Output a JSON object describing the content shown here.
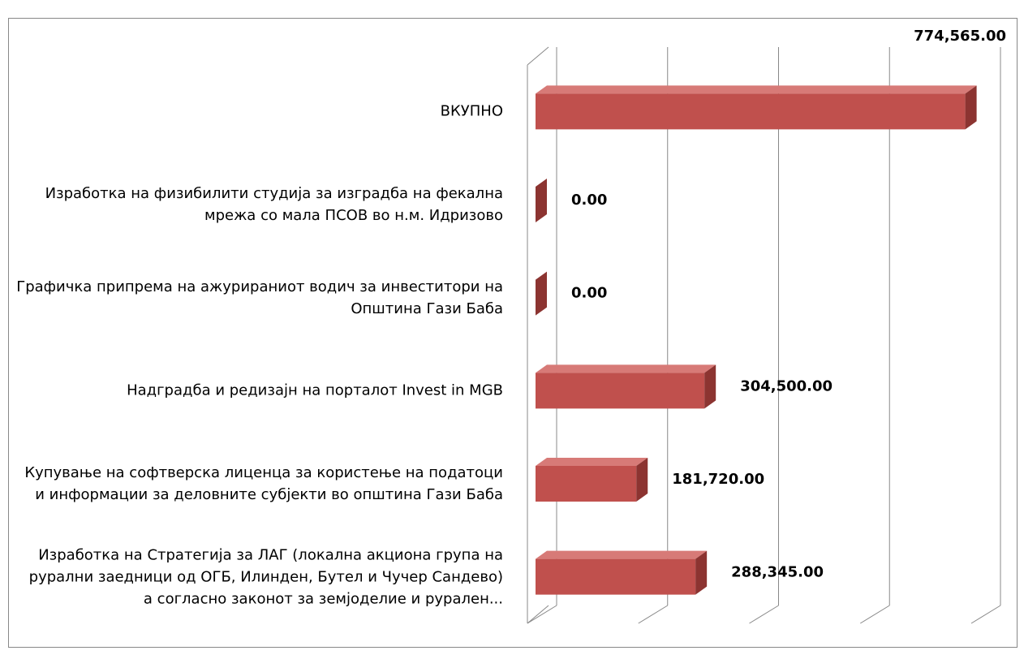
{
  "chart_data": {
    "type": "bar3d_horizontal",
    "categories": [
      "ВКУПНО",
      "Изработка на физибилити студија за изградба на фекална мрежа со мала ПСОВ во н.м. Идризово",
      "Графичка припрема на ажурираниот водич за инвеститори на Општина Гази Баба",
      "Надградба и редизајн на порталот Invest in MGB",
      "Купување на софтверска лиценца за користење на податоци и информации за  деловните субјекти во општина Гази Баба",
      "Изработка на Стратегија за ЛАГ (локална акциона група на рурални заедници од ОГБ, Илинден, Бутел и Чучер Сандево) а согласно законот за земјоделие и рурален..."
    ],
    "values": [
      774565,
      0,
      0,
      304500,
      181720,
      288345
    ],
    "value_labels": [
      "774,565.00",
      "0.00",
      "0.00",
      "304,500.00",
      "181,720.00",
      "288,345.00"
    ],
    "color": "#c0504d",
    "xlim": [
      0,
      800000
    ],
    "xticks": [
      0,
      200000,
      400000,
      600000,
      800000
    ],
    "grid": true
  }
}
